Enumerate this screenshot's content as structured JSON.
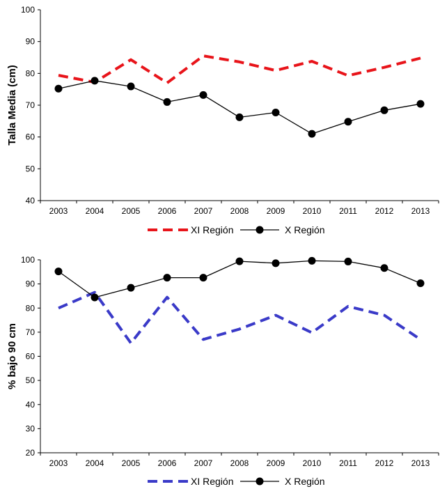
{
  "chart_data": [
    {
      "type": "line",
      "title": "",
      "xlabel": "",
      "ylabel": "Talla Media (cm)",
      "x": [
        "2003",
        "2004",
        "2005",
        "2006",
        "2007",
        "2008",
        "2009",
        "2010",
        "2011",
        "2012",
        "2013"
      ],
      "ylim": [
        40,
        100
      ],
      "yticks": [
        40,
        50,
        60,
        70,
        80,
        90,
        100
      ],
      "grid": false,
      "legend": "bottom",
      "series": [
        {
          "name": "XI Región",
          "style": "dashed",
          "marker": "none",
          "color": "#e8141a",
          "values": [
            79.4,
            77.2,
            84.3,
            77.0,
            85.5,
            83.6,
            80.9,
            83.8,
            79.3,
            81.9,
            84.8
          ]
        },
        {
          "name": "X Región",
          "style": "solid",
          "marker": "circle",
          "color": "#000000",
          "values": [
            75.2,
            77.7,
            75.9,
            71.0,
            73.2,
            66.2,
            67.7,
            61.0,
            64.8,
            68.4,
            70.4
          ]
        }
      ]
    },
    {
      "type": "line",
      "title": "",
      "xlabel": "",
      "ylabel": "% bajo 90 cm",
      "x": [
        "2003",
        "2004",
        "2005",
        "2006",
        "2007",
        "2008",
        "2009",
        "2010",
        "2011",
        "2012",
        "2013"
      ],
      "ylim": [
        20,
        100
      ],
      "yticks": [
        20,
        30,
        40,
        50,
        60,
        70,
        80,
        90,
        100
      ],
      "grid": false,
      "legend": "bottom",
      "series": [
        {
          "name": "XI Región",
          "style": "dashed",
          "marker": "none",
          "color": "#3a3ac8",
          "values": [
            80.0,
            86.5,
            65.5,
            84.5,
            67.0,
            71.3,
            77.0,
            69.8,
            80.7,
            77.0,
            67.0
          ]
        },
        {
          "name": "X Región",
          "style": "solid",
          "marker": "circle",
          "color": "#000000",
          "values": [
            95.2,
            84.4,
            88.4,
            92.6,
            92.6,
            99.4,
            98.6,
            99.6,
            99.3,
            96.6,
            90.3
          ]
        }
      ]
    }
  ]
}
